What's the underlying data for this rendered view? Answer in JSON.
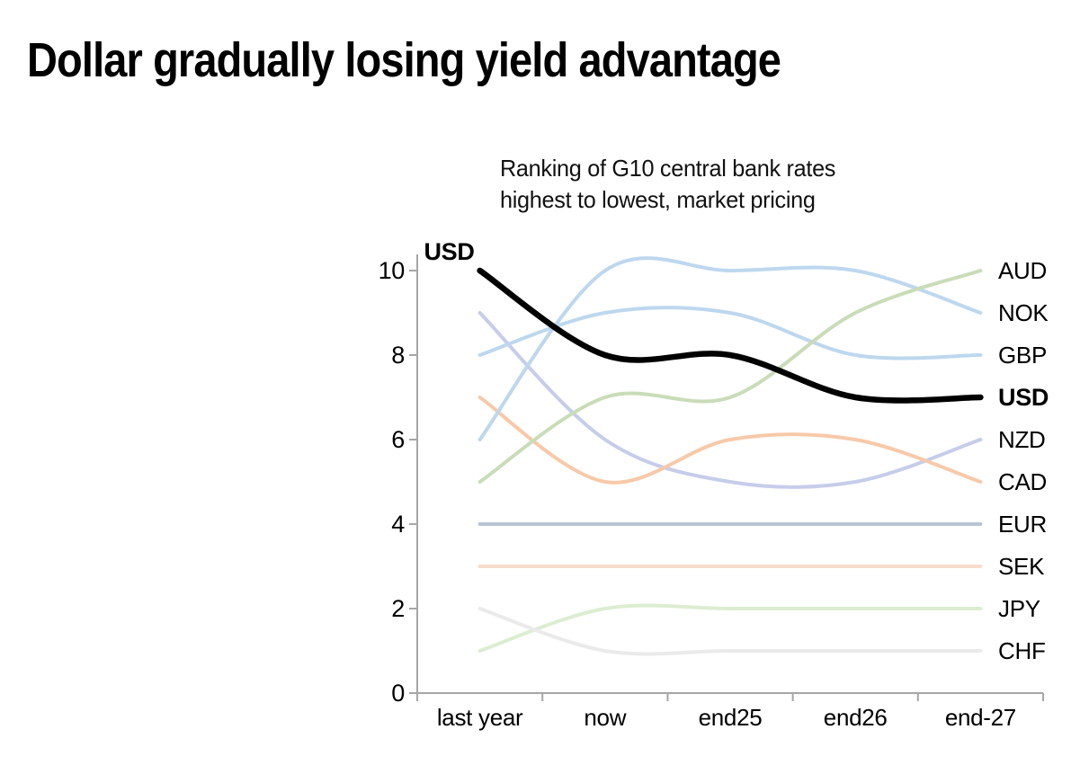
{
  "title": "Dollar gradually losing yield advantage",
  "subtitle": "Ranking of G10 central bank rates\nhighest to lowest, market pricing",
  "chart_data": {
    "type": "line",
    "title": "Ranking of G10 central bank rates highest to lowest, market pricing",
    "categories": [
      "last year",
      "now",
      "end25",
      "end26",
      "end-27"
    ],
    "series": [
      {
        "name": "EUR",
        "values": [
          4,
          4,
          4,
          4,
          4
        ],
        "color": "#b7c5d3",
        "width": 4
      },
      {
        "name": "SEK",
        "values": [
          3,
          3,
          3,
          3,
          3
        ],
        "color": "#f9dccb",
        "width": 4
      },
      {
        "name": "JPY",
        "values": [
          1,
          2,
          2,
          2,
          2
        ],
        "color": "#dcedd1",
        "width": 4
      },
      {
        "name": "CHF",
        "values": [
          2,
          1,
          1,
          1,
          1
        ],
        "color": "#eaeaea",
        "width": 4
      },
      {
        "name": "NZD",
        "values": [
          9,
          6,
          5,
          5,
          6
        ],
        "color": "#c6cdea",
        "width": 4
      },
      {
        "name": "CAD",
        "values": [
          7,
          5,
          6,
          6,
          5
        ],
        "color": "#f7c9a9",
        "width": 4
      },
      {
        "name": "NOK",
        "values": [
          6,
          10,
          10,
          10,
          9
        ],
        "color": "#bdd7ee",
        "width": 4
      },
      {
        "name": "GBP",
        "values": [
          8,
          9,
          9,
          8,
          8
        ],
        "color": "#bdd7ee",
        "width": 4
      },
      {
        "name": "AUD",
        "values": [
          5,
          7,
          7,
          9,
          10
        ],
        "color": "#c9dcb8",
        "width": 4
      },
      {
        "name": "USD",
        "values": [
          10,
          8,
          8,
          7,
          7
        ],
        "color": "#000000",
        "width": 6.5,
        "bold": true
      }
    ],
    "start_label": "USD",
    "end_labels_top_to_bottom": [
      "AUD",
      "NOK",
      "GBP",
      "USD",
      "NZD",
      "CAD",
      "EUR",
      "SEK",
      "JPY",
      "CHF"
    ],
    "ylim": [
      0,
      10
    ],
    "yticks": [
      0,
      2,
      4,
      6,
      8,
      10
    ],
    "grid": false,
    "legend_position": "right-of-line-ends",
    "axis_color": "#a6a6a6",
    "text_color": "#000000"
  }
}
